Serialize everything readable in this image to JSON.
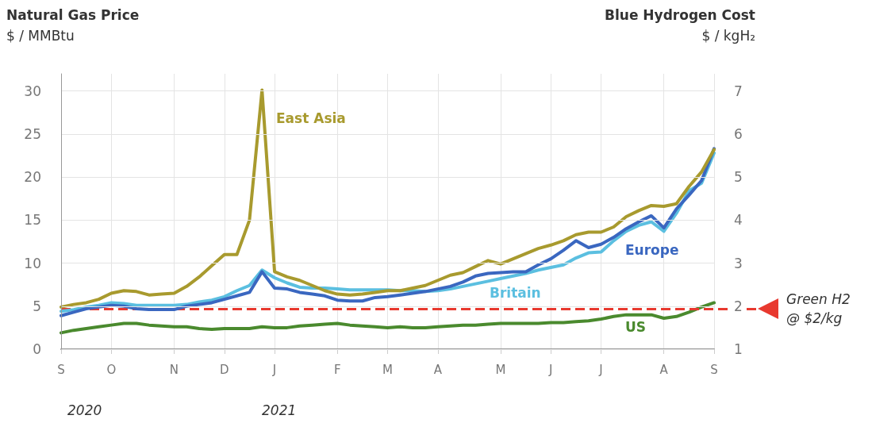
{
  "chart_data": {
    "type": "line",
    "ylabel": "Natural Gas Price\n$ / MMBtu",
    "y2label": "Blue Hydrogen Cost\n$ / kgH₂",
    "categories": [
      "S",
      null,
      null,
      null,
      "O",
      null,
      null,
      null,
      null,
      "N",
      null,
      null,
      null,
      "D",
      null,
      null,
      null,
      "J",
      null,
      null,
      null,
      null,
      "F",
      null,
      null,
      null,
      "M",
      null,
      null,
      null,
      "A",
      null,
      null,
      null,
      null,
      "M",
      null,
      null,
      null,
      "J",
      null,
      null,
      null,
      "J",
      null,
      null,
      null,
      null,
      "A",
      null,
      null,
      null,
      "S"
    ],
    "ylim": [
      0,
      32
    ],
    "yticks": [
      0,
      5,
      10,
      15,
      20,
      25,
      30
    ],
    "y2lim": [
      1,
      7.4
    ],
    "y2ticks": [
      1,
      2,
      3,
      4,
      5,
      6,
      7
    ],
    "grid": true,
    "legend": false,
    "marker": "none",
    "line_style": "solid",
    "series": [
      {
        "name": "East Asia",
        "color": "#a89a2e",
        "values": [
          4.9,
          5.2,
          5.4,
          5.8,
          6.5,
          6.8,
          6.7,
          6.3,
          6.4,
          6.5,
          7.3,
          8.4,
          9.7,
          11.0,
          11.0,
          15,
          30.1,
          9.0,
          8.4,
          8.0,
          7.4,
          6.8,
          6.4,
          6.3,
          6.4,
          6.6,
          6.8,
          6.8,
          7.1,
          7.4,
          8.0,
          8.6,
          8.9,
          9.6,
          10.3,
          9.9,
          10.5,
          11.1,
          11.7,
          12.1,
          12.6,
          13.3,
          13.6,
          13.6,
          14.2,
          15.4,
          16.1,
          16.7,
          16.6,
          16.9,
          18.9,
          20.6,
          23.2
        ]
      },
      {
        "name": "Europe",
        "color": "#3a67c0",
        "values": [
          3.9,
          4.3,
          4.7,
          4.9,
          5.1,
          5.0,
          4.7,
          4.6,
          4.6,
          4.6,
          5.0,
          5.2,
          5.4,
          5.8,
          6.2,
          6.6,
          9.0,
          7.1,
          7.0,
          6.6,
          6.4,
          6.2,
          5.7,
          5.6,
          5.6,
          6.0,
          6.1,
          6.3,
          6.5,
          6.7,
          7.0,
          7.3,
          7.8,
          8.5,
          8.8,
          8.9,
          9.0,
          9.0,
          9.8,
          10.5,
          11.5,
          12.6,
          11.8,
          12.2,
          13.0,
          14.0,
          14.8,
          15.5,
          14.1,
          16.3,
          17.9,
          19.6,
          23.3
        ]
      },
      {
        "name": "Britain",
        "color": "#5bbfe0",
        "values": [
          4.4,
          4.6,
          4.9,
          5.1,
          5.4,
          5.3,
          5.1,
          5.1,
          5.1,
          5.1,
          5.2,
          5.5,
          5.7,
          6.1,
          6.8,
          7.4,
          9.2,
          8.3,
          7.7,
          7.2,
          7.1,
          7.1,
          7.0,
          6.9,
          6.9,
          6.9,
          6.9,
          6.8,
          6.8,
          6.7,
          6.8,
          7.0,
          7.3,
          7.6,
          7.9,
          8.2,
          8.5,
          8.8,
          9.2,
          9.5,
          9.8,
          10.6,
          11.2,
          11.3,
          12.6,
          13.7,
          14.4,
          14.8,
          13.7,
          15.8,
          18.4,
          19.3,
          22.8
        ]
      },
      {
        "name": "US",
        "color": "#4a8a2e",
        "values": [
          1.9,
          2.2,
          2.4,
          2.6,
          2.8,
          3.0,
          3.0,
          2.8,
          2.7,
          2.6,
          2.6,
          2.4,
          2.3,
          2.4,
          2.4,
          2.4,
          2.6,
          2.5,
          2.5,
          2.7,
          2.8,
          2.9,
          3.0,
          2.8,
          2.7,
          2.6,
          2.5,
          2.6,
          2.5,
          2.5,
          2.6,
          2.7,
          2.8,
          2.8,
          2.9,
          3.0,
          3.0,
          3.0,
          3.0,
          3.1,
          3.1,
          3.2,
          3.3,
          3.5,
          3.8,
          4.0,
          4.0,
          4.0,
          3.6,
          3.8,
          4.3,
          4.9,
          5.4
        ]
      }
    ],
    "ref_lines": [
      {
        "axis": "y",
        "value": 4.7,
        "label": "Green H2\n@ $2/kg",
        "color": "#e8392f",
        "line_style": "dashed"
      }
    ],
    "annotations": [
      "2020",
      "2021"
    ]
  }
}
